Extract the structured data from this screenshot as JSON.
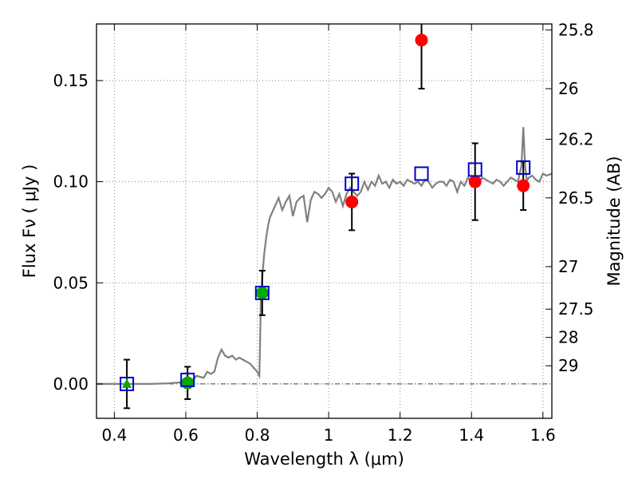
{
  "chart_data": {
    "type": "scatter",
    "title": "",
    "xlabel": "Wavelength  λ (μm)",
    "ylabel": "Flux  Fν  ( μJy )",
    "y2label": "Magnitude (AB)",
    "xlim": [
      0.35,
      1.625
    ],
    "ylim": [
      -0.017,
      0.178
    ],
    "grid": true,
    "x_ticks": [
      0.4,
      0.6,
      0.8,
      1.0,
      1.2,
      1.4,
      1.6
    ],
    "x_tick_labels": [
      "0.4",
      "0.6",
      "0.8",
      "1",
      "1.2",
      "1.4",
      "1.6"
    ],
    "y_ticks": [
      0.0,
      0.05,
      0.1,
      0.15
    ],
    "y_tick_labels": [
      "0.00",
      "0.05",
      "0.10",
      "0.15"
    ],
    "y2_ticks": [
      {
        "flux": 0.175,
        "label": "25.8"
      },
      {
        "flux": 0.146,
        "label": "26"
      },
      {
        "flux": 0.121,
        "label": "26.2"
      },
      {
        "flux": 0.092,
        "label": "26.5"
      },
      {
        "flux": 0.058,
        "label": "27"
      },
      {
        "flux": 0.037,
        "label": "27.5"
      },
      {
        "flux": 0.023,
        "label": "28"
      },
      {
        "flux": 0.009,
        "label": "29"
      }
    ],
    "zero_line": 0.0,
    "colors": {
      "model": "#808080",
      "observed": "#ff0000",
      "observed_green": "#00aa00",
      "model_photometry": "#0000cc",
      "errorbar": "#000000",
      "grid": "#888888"
    },
    "model_spectrum": {
      "x": [
        0.35,
        0.4,
        0.45,
        0.5,
        0.55,
        0.6,
        0.62,
        0.63,
        0.65,
        0.66,
        0.67,
        0.68,
        0.69,
        0.7,
        0.71,
        0.72,
        0.73,
        0.74,
        0.75,
        0.76,
        0.77,
        0.78,
        0.79,
        0.8,
        0.806,
        0.808,
        0.81,
        0.815,
        0.82,
        0.825,
        0.83,
        0.835,
        0.84,
        0.85,
        0.86,
        0.87,
        0.88,
        0.89,
        0.9,
        0.91,
        0.92,
        0.93,
        0.94,
        0.95,
        0.96,
        0.97,
        0.98,
        0.99,
        1.0,
        1.01,
        1.02,
        1.03,
        1.04,
        1.05,
        1.06,
        1.07,
        1.08,
        1.09,
        1.1,
        1.11,
        1.12,
        1.13,
        1.14,
        1.15,
        1.16,
        1.17,
        1.18,
        1.19,
        1.2,
        1.21,
        1.22,
        1.23,
        1.24,
        1.25,
        1.26,
        1.27,
        1.28,
        1.29,
        1.3,
        1.31,
        1.32,
        1.33,
        1.34,
        1.35,
        1.36,
        1.37,
        1.38,
        1.39,
        1.4,
        1.41,
        1.42,
        1.43,
        1.44,
        1.45,
        1.46,
        1.47,
        1.48,
        1.49,
        1.5,
        1.51,
        1.52,
        1.53,
        1.54,
        1.545,
        1.55,
        1.555,
        1.56,
        1.57,
        1.58,
        1.59,
        1.6,
        1.61,
        1.625
      ],
      "y": [
        0.0,
        0.0,
        0.0,
        0.0,
        0.0003,
        0.001,
        0.002,
        0.004,
        0.003,
        0.006,
        0.005,
        0.006,
        0.013,
        0.017,
        0.014,
        0.013,
        0.014,
        0.012,
        0.013,
        0.012,
        0.011,
        0.01,
        0.008,
        0.006,
        0.004,
        0.02,
        0.04,
        0.055,
        0.065,
        0.072,
        0.078,
        0.082,
        0.084,
        0.088,
        0.092,
        0.086,
        0.09,
        0.093,
        0.083,
        0.09,
        0.092,
        0.093,
        0.08,
        0.091,
        0.095,
        0.094,
        0.092,
        0.094,
        0.097,
        0.095,
        0.09,
        0.094,
        0.088,
        0.094,
        0.097,
        0.095,
        0.093,
        0.095,
        0.1,
        0.096,
        0.1,
        0.098,
        0.103,
        0.099,
        0.1,
        0.097,
        0.101,
        0.099,
        0.1,
        0.098,
        0.101,
        0.1,
        0.099,
        0.1,
        0.098,
        0.101,
        0.1,
        0.097,
        0.099,
        0.1,
        0.1,
        0.098,
        0.101,
        0.1,
        0.095,
        0.1,
        0.098,
        0.102,
        0.1,
        0.101,
        0.099,
        0.102,
        0.101,
        0.1,
        0.099,
        0.101,
        0.1,
        0.098,
        0.1,
        0.102,
        0.101,
        0.1,
        0.108,
        0.127,
        0.108,
        0.1,
        0.102,
        0.103,
        0.101,
        0.1,
        0.104,
        0.103,
        0.104
      ]
    },
    "observed_points": [
      {
        "x": 0.435,
        "y": 0.0,
        "err": 0.012,
        "shape": "triangle",
        "color": "green"
      },
      {
        "x": 0.605,
        "y": 0.0005,
        "err": 0.008,
        "shape": "circle",
        "color": "green"
      },
      {
        "x": 0.814,
        "y": 0.045,
        "err": 0.011,
        "shape": "circle",
        "color": "green"
      },
      {
        "x": 1.065,
        "y": 0.09,
        "err": 0.014,
        "shape": "circle",
        "color": "red"
      },
      {
        "x": 1.26,
        "y": 0.17,
        "err": 0.024,
        "shape": "circle",
        "color": "red"
      },
      {
        "x": 1.41,
        "y": 0.1,
        "err": 0.019,
        "shape": "circle",
        "color": "red"
      },
      {
        "x": 1.545,
        "y": 0.098,
        "err": 0.012,
        "shape": "circle",
        "color": "red"
      }
    ],
    "model_photometry": [
      {
        "x": 0.435,
        "y": 0.0
      },
      {
        "x": 0.605,
        "y": 0.002
      },
      {
        "x": 0.814,
        "y": 0.045
      },
      {
        "x": 1.065,
        "y": 0.099
      },
      {
        "x": 1.26,
        "y": 0.104
      },
      {
        "x": 1.41,
        "y": 0.106
      },
      {
        "x": 1.545,
        "y": 0.107
      }
    ]
  }
}
